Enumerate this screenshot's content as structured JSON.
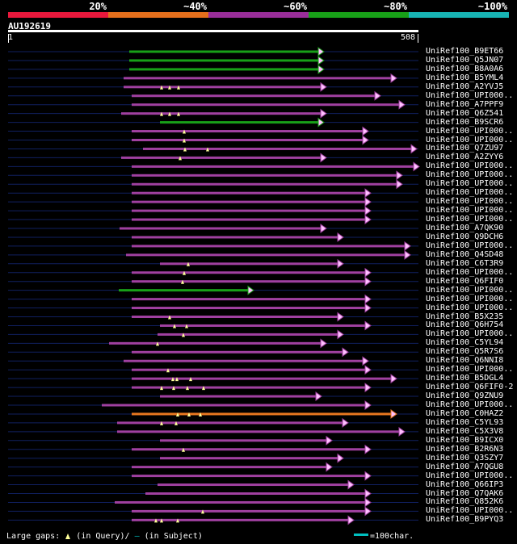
{
  "legend": {
    "labels": [
      "20%",
      "~40%",
      "~60%",
      "~80%",
      "~100%"
    ],
    "colors": [
      "#e8183c",
      "#e46f1c",
      "#992e99",
      "#18a018",
      "#18b4b4"
    ]
  },
  "query": {
    "id": "AU192619",
    "length_label": "508",
    "start_label": "1",
    "length": 508
  },
  "colors": {
    "background": "#000000",
    "track": "#102060",
    "identity_80": "#18a018",
    "identity_60": "#a040a0",
    "identity_40": "#e87820",
    "arrow_fill": "#ffc0ff",
    "gap_marker": "#ffff99"
  },
  "hits": [
    {
      "label": "UniRef100_B9ET66",
      "start": 150,
      "end": 390,
      "class": "g",
      "gaps": []
    },
    {
      "label": "UniRef100_Q5JN07",
      "start": 150,
      "end": 390,
      "class": "g",
      "gaps": []
    },
    {
      "label": "UniRef100_B8A0A6",
      "start": 150,
      "end": 390,
      "class": "g",
      "gaps": []
    },
    {
      "label": "UniRef100_B5YML4",
      "start": 143,
      "end": 480,
      "class": "p",
      "gaps": []
    },
    {
      "label": "UniRef100_A2YVJ5",
      "start": 143,
      "end": 393,
      "class": "p",
      "gaps": [
        190,
        200,
        211
      ]
    },
    {
      "label": "UniRef100_UPI000..",
      "start": 153,
      "end": 460,
      "class": "p",
      "gaps": []
    },
    {
      "label": "UniRef100_A7PPF9",
      "start": 153,
      "end": 490,
      "class": "p",
      "gaps": []
    },
    {
      "label": "UniRef100_Q6Z541",
      "start": 140,
      "end": 393,
      "class": "p",
      "gaps": [
        190,
        200,
        211
      ]
    },
    {
      "label": "UniRef100_B9SCR6",
      "start": 188,
      "end": 390,
      "class": "g",
      "gaps": []
    },
    {
      "label": "UniRef100_UPI000..",
      "start": 153,
      "end": 445,
      "class": "p",
      "gaps": [
        218
      ]
    },
    {
      "label": "UniRef100_UPI000..",
      "start": 153,
      "end": 445,
      "class": "p",
      "gaps": [
        218
      ]
    },
    {
      "label": "UniRef100_Q7ZU97",
      "start": 167,
      "end": 505,
      "class": "p",
      "gaps": [
        219,
        247
      ]
    },
    {
      "label": "UniRef100_A2ZYY6",
      "start": 140,
      "end": 393,
      "class": "p",
      "gaps": [
        213
      ]
    },
    {
      "label": "UniRef100_UPI000..",
      "start": 153,
      "end": 508,
      "class": "p",
      "gaps": []
    },
    {
      "label": "UniRef100_UPI000..",
      "start": 153,
      "end": 487,
      "class": "p",
      "gaps": []
    },
    {
      "label": "UniRef100_UPI000..",
      "start": 153,
      "end": 487,
      "class": "p",
      "gaps": []
    },
    {
      "label": "UniRef100_UPI000..",
      "start": 153,
      "end": 448,
      "class": "p",
      "gaps": []
    },
    {
      "label": "UniRef100_UPI000..",
      "start": 153,
      "end": 448,
      "class": "p",
      "gaps": []
    },
    {
      "label": "UniRef100_UPI000..",
      "start": 153,
      "end": 448,
      "class": "p",
      "gaps": []
    },
    {
      "label": "UniRef100_UPI000..",
      "start": 153,
      "end": 448,
      "class": "p",
      "gaps": []
    },
    {
      "label": "UniRef100_A7QK90",
      "start": 138,
      "end": 393,
      "class": "p",
      "gaps": []
    },
    {
      "label": "UniRef100_Q9DCH6",
      "start": 153,
      "end": 414,
      "class": "p",
      "gaps": []
    },
    {
      "label": "UniRef100_UPI000..",
      "start": 153,
      "end": 497,
      "class": "p",
      "gaps": []
    },
    {
      "label": "UniRef100_Q4SD48",
      "start": 146,
      "end": 497,
      "class": "p",
      "gaps": []
    },
    {
      "label": "UniRef100_C6T3R9",
      "start": 188,
      "end": 414,
      "class": "p",
      "gaps": [
        223
      ]
    },
    {
      "label": "UniRef100_UPI000..",
      "start": 153,
      "end": 448,
      "class": "p",
      "gaps": [
        218
      ]
    },
    {
      "label": "UniRef100_Q6FIF0",
      "start": 153,
      "end": 448,
      "class": "p",
      "gaps": [
        216
      ]
    },
    {
      "label": "UniRef100_UPI000..",
      "start": 137,
      "end": 303,
      "class": "g",
      "gaps": []
    },
    {
      "label": "UniRef100_UPI000..",
      "start": 153,
      "end": 448,
      "class": "p",
      "gaps": []
    },
    {
      "label": "UniRef100_UPI000..",
      "start": 153,
      "end": 448,
      "class": "p",
      "gaps": []
    },
    {
      "label": "UniRef100_B5X235",
      "start": 153,
      "end": 414,
      "class": "p",
      "gaps": [
        200
      ]
    },
    {
      "label": "UniRef100_Q6H754",
      "start": 188,
      "end": 448,
      "class": "p",
      "gaps": [
        206,
        221
      ]
    },
    {
      "label": "UniRef100_UPI000..",
      "start": 185,
      "end": 414,
      "class": "p",
      "gaps": [
        217
      ]
    },
    {
      "label": "UniRef100_C5YL94",
      "start": 125,
      "end": 393,
      "class": "p",
      "gaps": [
        185
      ]
    },
    {
      "label": "UniRef100_Q5R7S6",
      "start": 153,
      "end": 420,
      "class": "p",
      "gaps": []
    },
    {
      "label": "UniRef100_Q6NNI8",
      "start": 143,
      "end": 445,
      "class": "p",
      "gaps": []
    },
    {
      "label": "UniRef100_UPI000..",
      "start": 153,
      "end": 448,
      "class": "p",
      "gaps": [
        198
      ]
    },
    {
      "label": "UniRef100_B5DGL4",
      "start": 153,
      "end": 480,
      "class": "p",
      "gaps": [
        204,
        209,
        226
      ]
    },
    {
      "label": "UniRef100_Q6FIF0-2",
      "start": 153,
      "end": 448,
      "class": "p",
      "gaps": [
        190,
        205,
        222,
        242
      ]
    },
    {
      "label": "UniRef100_Q9ZNU9",
      "start": 188,
      "end": 387,
      "class": "p",
      "gaps": []
    },
    {
      "label": "UniRef100_UPI000..",
      "start": 116,
      "end": 448,
      "class": "p",
      "gaps": []
    },
    {
      "label": "UniRef100_C0HAZ2",
      "start": 153,
      "end": 480,
      "class": "o",
      "gaps": [
        210,
        224,
        238
      ]
    },
    {
      "label": "UniRef100_C5YL93",
      "start": 135,
      "end": 420,
      "class": "p",
      "gaps": [
        190,
        208
      ]
    },
    {
      "label": "UniRef100_C5X3V8",
      "start": 135,
      "end": 490,
      "class": "p",
      "gaps": []
    },
    {
      "label": "UniRef100_B9ICX0",
      "start": 188,
      "end": 400,
      "class": "p",
      "gaps": []
    },
    {
      "label": "UniRef100_B2R6N3",
      "start": 153,
      "end": 448,
      "class": "p",
      "gaps": [
        217
      ]
    },
    {
      "label": "UniRef100_Q3SZY7",
      "start": 188,
      "end": 414,
      "class": "p",
      "gaps": []
    },
    {
      "label": "UniRef100_A7QGU8",
      "start": 153,
      "end": 400,
      "class": "p",
      "gaps": []
    },
    {
      "label": "UniRef100_UPI000..",
      "start": 153,
      "end": 448,
      "class": "p",
      "gaps": []
    },
    {
      "label": "UniRef100_Q66IP3",
      "start": 185,
      "end": 427,
      "class": "p",
      "gaps": []
    },
    {
      "label": "UniRef100_Q7QAK6",
      "start": 170,
      "end": 448,
      "class": "p",
      "gaps": []
    },
    {
      "label": "UniRef100_Q852K6",
      "start": 132,
      "end": 448,
      "class": "p",
      "gaps": []
    },
    {
      "label": "UniRef100_UPI000..",
      "start": 153,
      "end": 448,
      "class": "p",
      "gaps": [
        241
      ]
    },
    {
      "label": "UniRef100_B9PYQ3",
      "start": 153,
      "end": 427,
      "class": "p",
      "gaps": [
        183,
        190,
        210
      ]
    }
  ],
  "footer": {
    "left_prefix": "Large gaps:",
    "left_query": "(in Query)/",
    "left_dash": "–",
    "left_subject": " (in Subject)",
    "right_label": "=100char."
  }
}
